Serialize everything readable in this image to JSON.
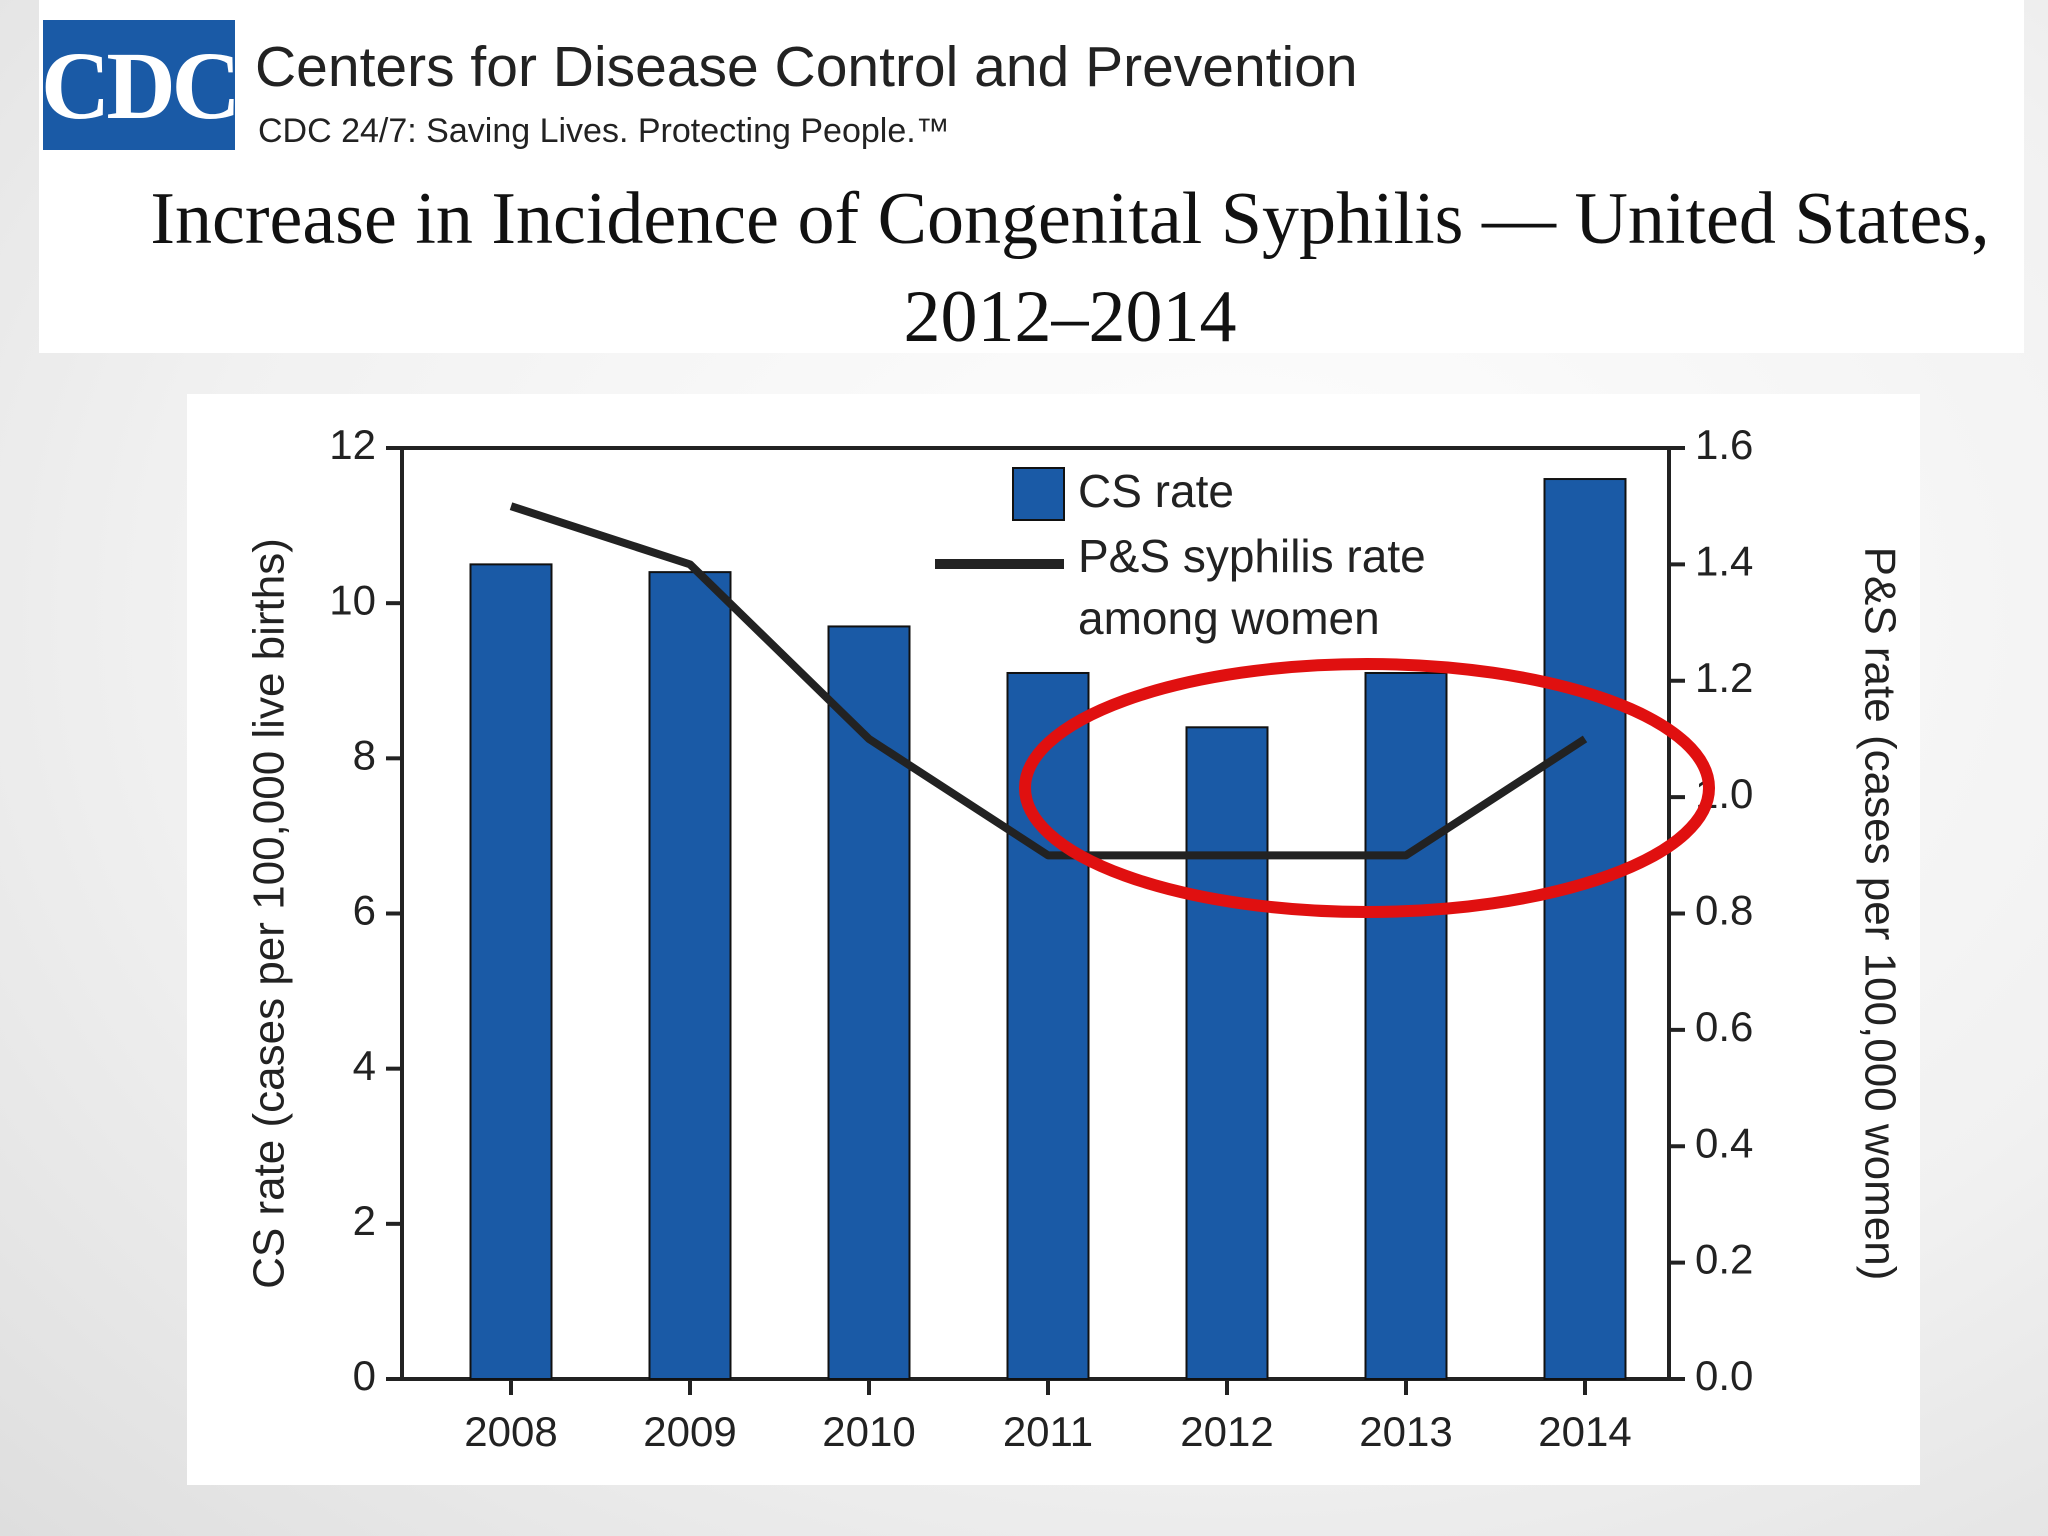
{
  "header": {
    "logo": "CDC",
    "organization": "Centers for Disease Control and Prevention",
    "tagline": "CDC 24/7: Saving Lives. Protecting People.™"
  },
  "chart_data": {
    "type": "bar",
    "title": "Increase in Incidence of Congenital Syphilis — United States, 2012–2014",
    "categories": [
      "2008",
      "2009",
      "2010",
      "2011",
      "2012",
      "2013",
      "2014"
    ],
    "series": [
      {
        "name": "CS rate",
        "type": "bar",
        "color": "#1a5aa6",
        "values": [
          10.5,
          10.4,
          9.7,
          9.1,
          8.4,
          9.1,
          11.6
        ]
      },
      {
        "name": "P&S syphilis rate among women",
        "type": "line",
        "axis": "y2",
        "color": "#222222",
        "values": [
          1.5,
          1.4,
          1.1,
          0.9,
          0.9,
          0.9,
          1.1
        ]
      }
    ],
    "ylabel": "CS rate (cases per 100,000 live births)",
    "y2label": "P&S rate (cases per 100,000 women)",
    "ylim": [
      0,
      12
    ],
    "yticks": [
      0,
      2,
      4,
      6,
      8,
      10,
      12
    ],
    "y2lim": [
      0,
      1.6
    ],
    "y2ticks": [
      {
        "value": 0,
        "label": "0.0"
      },
      0.2,
      0.4,
      0.6,
      0.8,
      {
        "value": 1,
        "label": "1.0"
      },
      1.2,
      1.4,
      1.6
    ]
  }
}
